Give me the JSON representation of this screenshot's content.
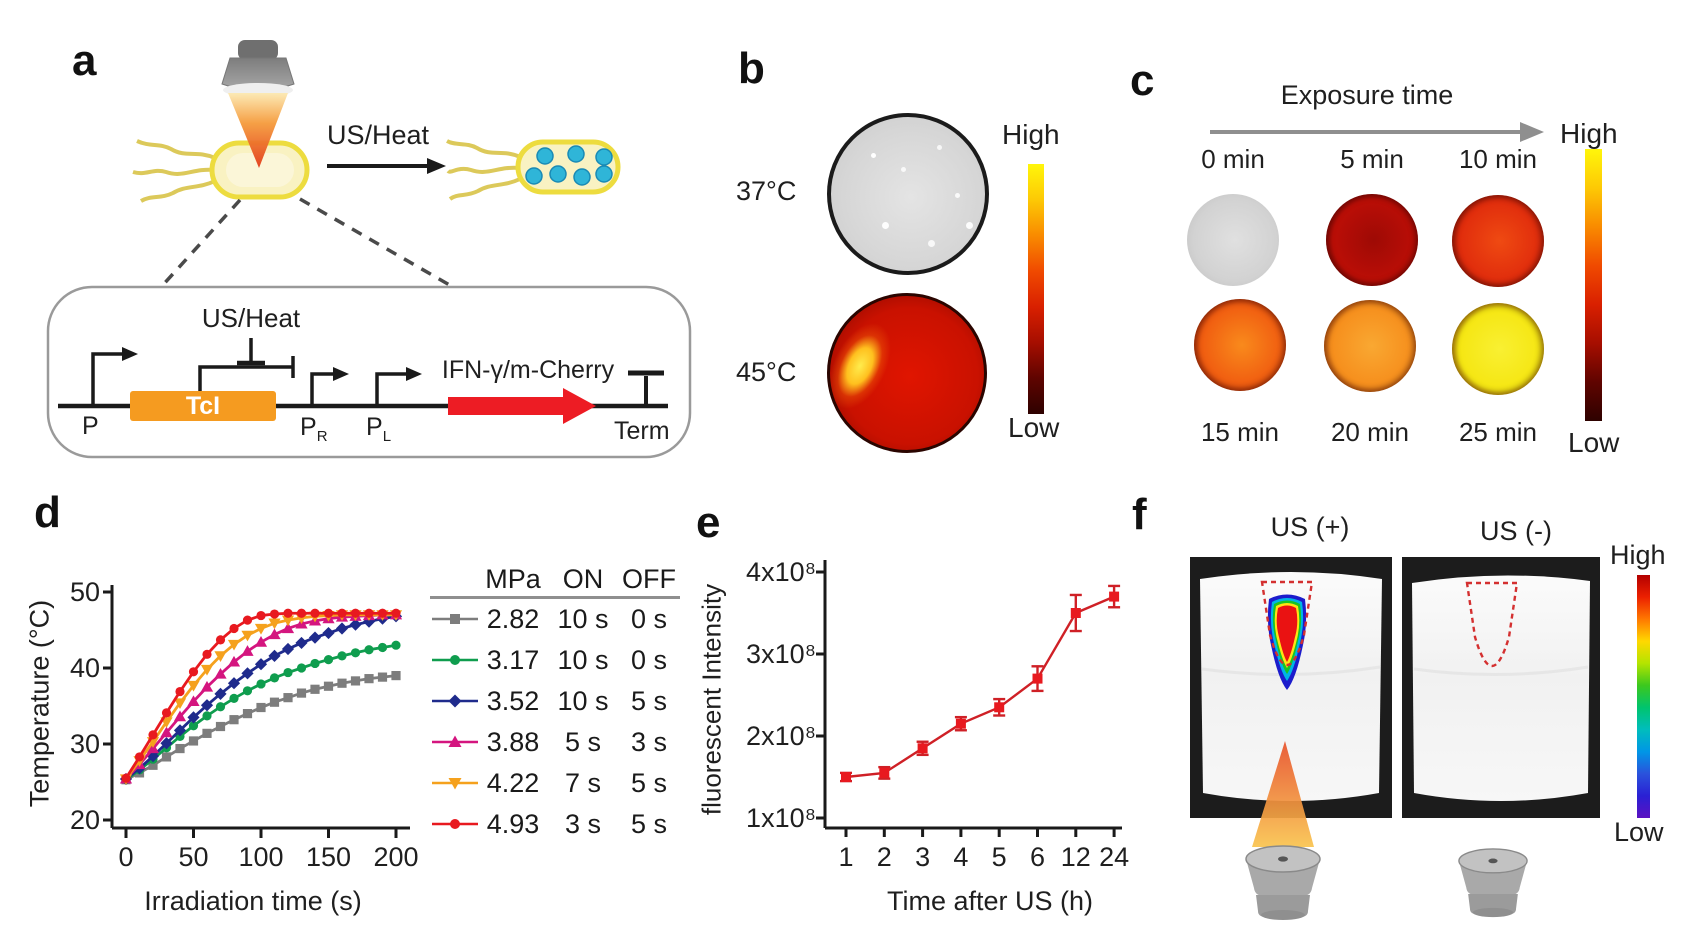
{
  "figure": {
    "panel_a": {
      "label": "a",
      "arrow_label": "US/Heat",
      "circuit": {
        "inhibitor_label": "US/Heat",
        "promoter1": "P",
        "repressor": "TcI",
        "promoter2_base": "P",
        "promoter2_sub": "R",
        "promoter3_base": "P",
        "promoter3_sub": "L",
        "gene": "IFN-γ/m-Cherry",
        "terminator": "Term"
      },
      "colors": {
        "repressor_box": "#F59B20",
        "gene_arrow": "#ED1C24",
        "bacterium_fill": "#F9F2C2",
        "bacterium_border": "#EDDC3F",
        "inclusion_dots": "#2FB5D8"
      }
    },
    "panel_b": {
      "label": "b",
      "rows": [
        {
          "temp": "37°C",
          "dish_colors": [
            "#e4e4e4",
            "#d6d6d6",
            "#c9c9c9"
          ]
        },
        {
          "temp": "45°C",
          "dish_colors": [
            "#e01500",
            "#c91100",
            "#7a0600"
          ]
        }
      ],
      "colorbar": {
        "high": "High",
        "low": "Low"
      }
    },
    "panel_c": {
      "label": "c",
      "header": "Exposure time",
      "dishes": [
        {
          "label": "0 min",
          "colors": [
            "#e0e0e0",
            "#d2d2d2",
            "#bdbdbd"
          ]
        },
        {
          "label": "5 min",
          "colors": [
            "#9e0a05",
            "#bb0e06",
            "#6a0602"
          ]
        },
        {
          "label": "10 min",
          "colors": [
            "#ef4a12",
            "#e02c0c",
            "#8f1004"
          ]
        },
        {
          "label": "15 min",
          "colors": [
            "#f98a1c",
            "#f05c10",
            "#a81804"
          ]
        },
        {
          "label": "20 min",
          "colors": [
            "#f9a832",
            "#f68e1c",
            "#b23408"
          ]
        },
        {
          "label": "25 min",
          "colors": [
            "#f9f032",
            "#f5e612",
            "#c05c08"
          ]
        }
      ],
      "colorbar": {
        "high": "High",
        "low": "Low"
      }
    },
    "panel_d": {
      "label": "d"
    },
    "panel_e": {
      "label": "e"
    },
    "panel_f": {
      "label": "f",
      "left_title": "US (+)",
      "right_title": "US (-)",
      "colorbar": {
        "high": "High",
        "low": "Low"
      }
    },
    "colormaps": {
      "hot": [
        "#fff60a",
        "#fdc905",
        "#f98b00",
        "#f04a00",
        "#d92000",
        "#a60e00",
        "#5f0400",
        "#2e0200"
      ],
      "rainbow": [
        "#b30000",
        "#ec2000",
        "#ff7800",
        "#ffd800",
        "#b4e400",
        "#3cc81e",
        "#00c46e",
        "#00bdbd",
        "#0096e6",
        "#2a52dc",
        "#2a20d4",
        "#5c12c2"
      ]
    }
  },
  "chart_data": [
    {
      "id": "panel_d",
      "type": "line",
      "xlabel": "Irradiation time (s)",
      "ylabel": "Temperature (°C)",
      "xlim": [
        0,
        200
      ],
      "ylim": [
        20,
        50
      ],
      "xticks": [
        0,
        50,
        100,
        150,
        200
      ],
      "yticks": [
        20,
        30,
        40,
        50
      ],
      "x_step": 10,
      "grid": false,
      "legend": {
        "headers": [
          "MPa",
          "ON",
          "OFF"
        ],
        "position": "right"
      },
      "series": [
        {
          "mpa": "2.82",
          "on": "10 s",
          "off": "0 s",
          "color": "#7d7d7d",
          "marker": "square",
          "values": [
            25.3,
            26.2,
            27.2,
            28.3,
            29.4,
            30.4,
            31.4,
            32.3,
            33.2,
            34.0,
            34.8,
            35.5,
            36.1,
            36.7,
            37.2,
            37.6,
            38.0,
            38.3,
            38.6,
            38.8,
            39.0
          ]
        },
        {
          "mpa": "3.17",
          "on": "10 s",
          "off": "0 s",
          "color": "#0f9d4e",
          "marker": "circle",
          "values": [
            25.3,
            26.6,
            28.0,
            29.5,
            31.0,
            32.4,
            33.7,
            34.9,
            36.0,
            37.0,
            37.9,
            38.7,
            39.4,
            40.0,
            40.6,
            41.1,
            41.6,
            42.0,
            42.4,
            42.7,
            43.0
          ]
        },
        {
          "mpa": "3.52",
          "on": "10 s",
          "off": "5 s",
          "color": "#1f2b8c",
          "marker": "diamond",
          "values": [
            25.4,
            26.8,
            28.4,
            30.1,
            31.8,
            33.5,
            35.1,
            36.6,
            38.0,
            39.3,
            40.5,
            41.6,
            42.5,
            43.3,
            44.0,
            44.6,
            45.2,
            45.7,
            46.1,
            46.5,
            46.8
          ]
        },
        {
          "mpa": "3.88",
          "on": "5 s",
          "off": "3 s",
          "color": "#d4157f",
          "marker": "triangle-up",
          "values": [
            25.4,
            27.3,
            29.4,
            31.5,
            33.6,
            35.6,
            37.5,
            39.2,
            40.8,
            42.2,
            43.4,
            44.4,
            45.2,
            45.8,
            46.2,
            46.5,
            46.7,
            46.8,
            46.9,
            47.0,
            47.0
          ]
        },
        {
          "mpa": "4.22",
          "on": "7 s",
          "off": "5 s",
          "color": "#f5a11d",
          "marker": "triangle-down",
          "values": [
            25.4,
            27.8,
            30.3,
            32.9,
            35.4,
            37.7,
            39.8,
            41.6,
            43.1,
            44.3,
            45.2,
            45.9,
            46.3,
            46.6,
            46.8,
            46.9,
            47.0,
            47.0,
            47.0,
            47.0,
            47.0
          ]
        },
        {
          "mpa": "4.93",
          "on": "3 s",
          "off": "5 s",
          "color": "#e8191f",
          "marker": "circle",
          "values": [
            25.5,
            28.3,
            31.2,
            34.1,
            36.9,
            39.5,
            41.8,
            43.7,
            45.2,
            46.3,
            46.9,
            47.1,
            47.2,
            47.2,
            47.2,
            47.2,
            47.2,
            47.2,
            47.2,
            47.2,
            47.2
          ]
        }
      ]
    },
    {
      "id": "panel_e",
      "type": "line",
      "xlabel": "Time after US (h)",
      "ylabel": "fluorescent Intensity",
      "categories": [
        "1",
        "2",
        "3",
        "4",
        "5",
        "6",
        "12",
        "24"
      ],
      "ytick_labels": [
        "1x10⁸",
        "2x10⁸",
        "3x10⁸",
        "4x10⁸"
      ],
      "ylim_e8": [
        1,
        4
      ],
      "values_e8": [
        1.5,
        1.55,
        1.85,
        2.15,
        2.35,
        2.7,
        3.5,
        3.7
      ],
      "errors_e8": [
        0.05,
        0.07,
        0.08,
        0.08,
        0.1,
        0.15,
        0.22,
        0.13
      ],
      "color": "#e8191f",
      "line_color": "#cf2026",
      "marker": "square",
      "grid": false
    }
  ]
}
